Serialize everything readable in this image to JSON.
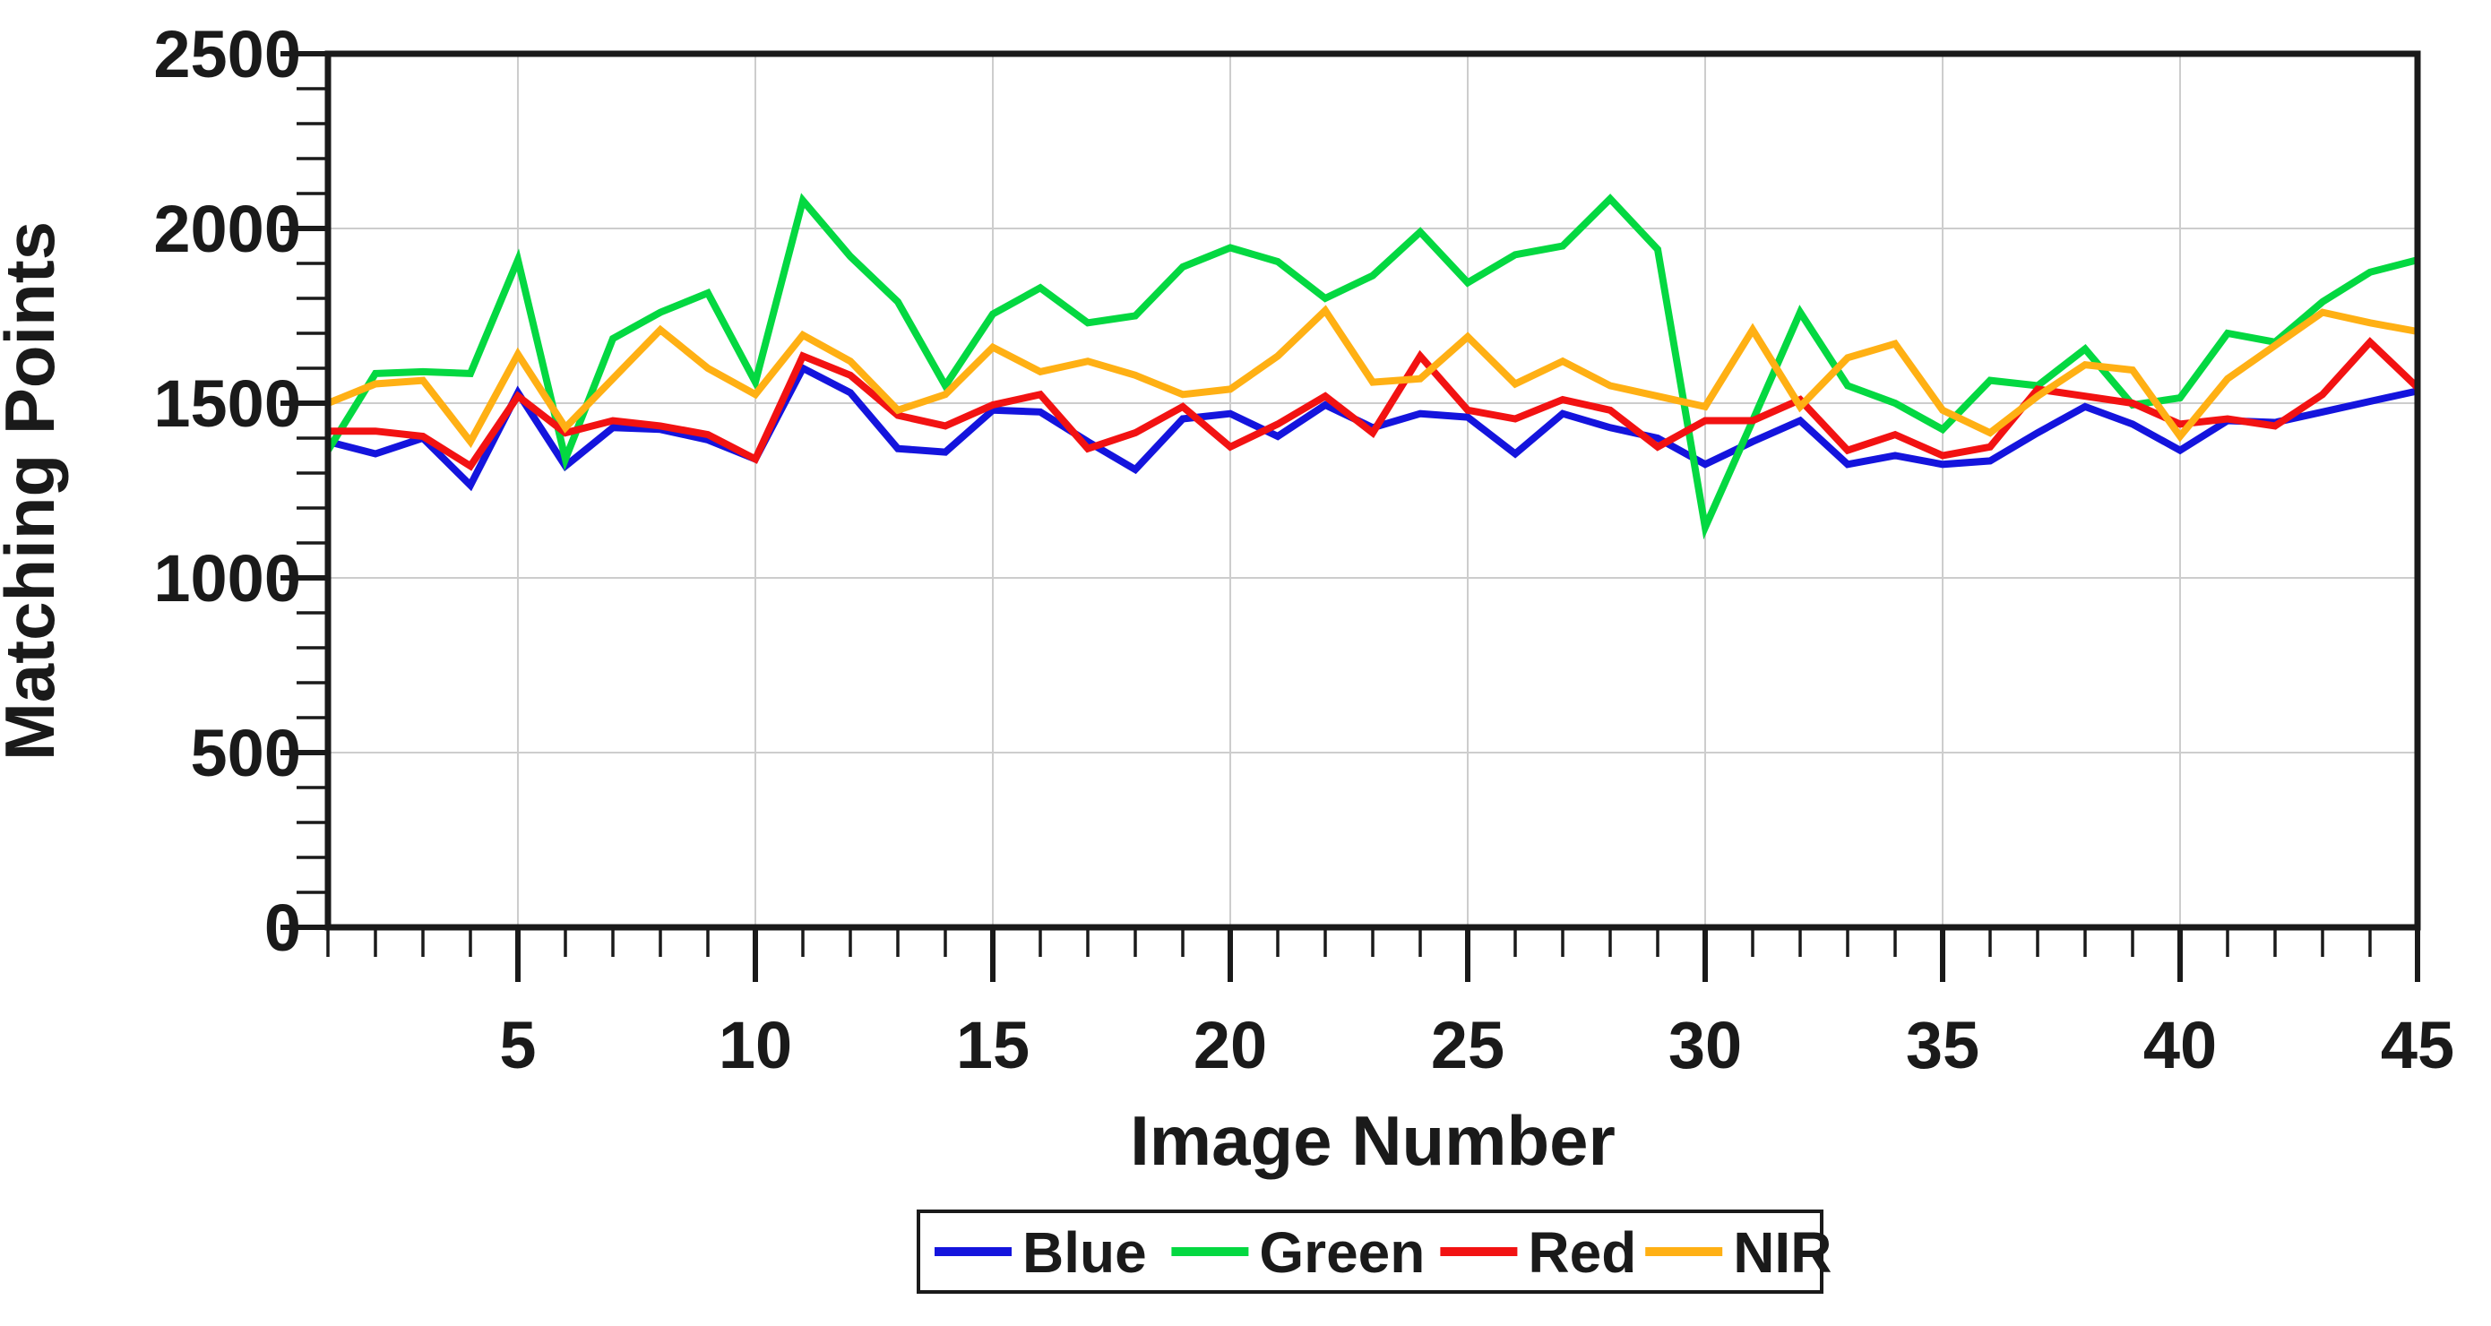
{
  "page": {
    "background_color": "#ffffff",
    "text_color": "#1a1a1a"
  },
  "chart_data": {
    "type": "line",
    "title": "",
    "xlabel": "Image Number",
    "ylabel": "Matching Points",
    "x_range": [
      1,
      45
    ],
    "x_step": 1,
    "ylim": [
      0,
      2500
    ],
    "grid": true,
    "grid_color": "#cdcdcd",
    "axis_color": "#1a1a1a",
    "legend_position": "bottom-center",
    "y_major_ticks": [
      0,
      500,
      1000,
      1500,
      2000,
      2500
    ],
    "y_tick_labels": [
      "0",
      "500",
      "1000",
      "1500",
      "2000",
      "2500"
    ],
    "y_minor_step": 100,
    "x_major_ticks": [
      5,
      10,
      15,
      20,
      25,
      30,
      35,
      40,
      45
    ],
    "x_tick_labels": [
      "5",
      "10",
      "15",
      "20",
      "25",
      "30",
      "35",
      "40",
      "45"
    ],
    "x_minor_step": 1,
    "series": [
      {
        "name": "Blue",
        "color": "#1414dd",
        "values": [
          1390,
          1355,
          1400,
          1265,
          1530,
          1320,
          1430,
          1425,
          1395,
          1340,
          1600,
          1530,
          1370,
          1360,
          1480,
          1475,
          1390,
          1310,
          1455,
          1470,
          1405,
          1495,
          1430,
          1470,
          1460,
          1355,
          1470,
          1430,
          1400,
          1325,
          1390,
          1450,
          1325,
          1350,
          1325,
          1335,
          1415,
          1490,
          1440,
          1365,
          1450,
          1445,
          1475,
          1505,
          1535
        ]
      },
      {
        "name": "Green",
        "color": "#04d841",
        "values": [
          1365,
          1585,
          1590,
          1585,
          1910,
          1340,
          1685,
          1760,
          1815,
          1560,
          2080,
          1920,
          1790,
          1550,
          1755,
          1830,
          1730,
          1750,
          1890,
          1945,
          1905,
          1800,
          1865,
          1990,
          1845,
          1925,
          1950,
          2085,
          1940,
          1145,
          1450,
          1760,
          1550,
          1500,
          1425,
          1565,
          1550,
          1655,
          1495,
          1515,
          1700,
          1675,
          1790,
          1875,
          1910
        ]
      },
      {
        "name": "Red",
        "color": "#f21212",
        "values": [
          1420,
          1420,
          1405,
          1320,
          1520,
          1415,
          1450,
          1435,
          1410,
          1340,
          1635,
          1580,
          1465,
          1435,
          1495,
          1525,
          1370,
          1415,
          1490,
          1375,
          1440,
          1520,
          1415,
          1635,
          1480,
          1455,
          1510,
          1480,
          1375,
          1450,
          1450,
          1510,
          1365,
          1410,
          1350,
          1375,
          1540,
          1520,
          1500,
          1440,
          1455,
          1435,
          1525,
          1675,
          1545
        ]
      },
      {
        "name": "NIR",
        "color": "#ffb014",
        "values": [
          1500,
          1555,
          1565,
          1390,
          1640,
          1430,
          1570,
          1710,
          1600,
          1525,
          1695,
          1620,
          1480,
          1525,
          1660,
          1590,
          1620,
          1580,
          1525,
          1540,
          1635,
          1765,
          1560,
          1570,
          1690,
          1555,
          1620,
          1550,
          1520,
          1490,
          1710,
          1490,
          1630,
          1670,
          1480,
          1415,
          1520,
          1610,
          1595,
          1405,
          1570,
          1665,
          1760,
          1730,
          1705
        ]
      }
    ]
  }
}
